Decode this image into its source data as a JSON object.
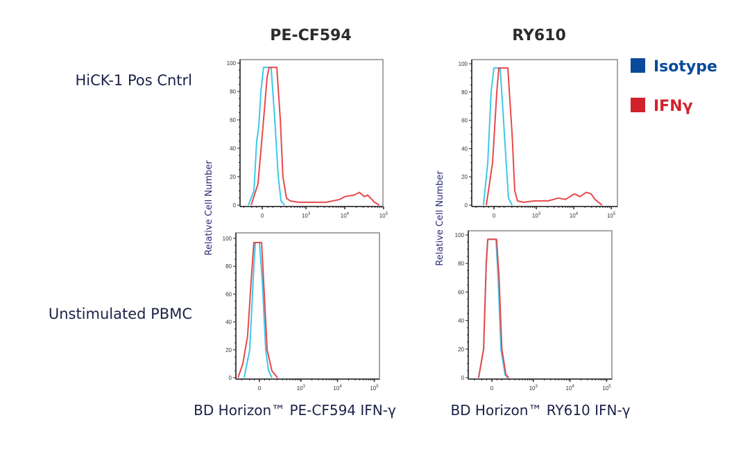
{
  "column_titles": [
    "PE-CF594",
    "RY610"
  ],
  "row_labels": [
    "HiCK-1 Pos Cntrl",
    "Unstimulated PBMC"
  ],
  "x_axis_labels": [
    "BD Horizon™ PE-CF594 IFN-γ",
    "BD Horizon™ RY610 IFN-γ"
  ],
  "y_axis_label": "Relative Cell Number",
  "legend": [
    {
      "label": "Isotype",
      "color": "#0b4a9b",
      "line_color": "#3cc8e8"
    },
    {
      "label": "IFNγ",
      "color": "#d1222b",
      "line_color": "#e8484a"
    }
  ],
  "chart_data": [
    {
      "type": "line",
      "panel": "HiCK-1 Pos Cntrl / PE-CF594",
      "x_scale": "biexponential",
      "xlim": [
        -260,
        200000
      ],
      "ylim": [
        0,
        100
      ],
      "grid": false,
      "y_ticks": [
        "0",
        "20",
        "40",
        "60",
        "80",
        "100"
      ],
      "x_ticks": [
        {
          "value": 0,
          "base": "0",
          "exp": ""
        },
        {
          "value": 1000,
          "base": "10",
          "exp": "3"
        },
        {
          "value": 10000,
          "base": "10",
          "exp": "4"
        },
        {
          "value": 100000,
          "base": "10",
          "exp": "5"
        }
      ],
      "series": [
        {
          "name": "Isotype",
          "x": [
            -138,
            -77,
            -50,
            -31,
            -12,
            12,
            83,
            122,
            165,
            204,
            261
          ],
          "y": [
            0,
            10,
            45,
            55,
            80,
            97,
            97,
            60,
            20,
            3,
            0
          ]
        },
        {
          "name": "IFNγ",
          "x": [
            -106,
            -38,
            12,
            44,
            63,
            146,
            194,
            234,
            298,
            376,
            632,
            1440,
            3300,
            7500,
            10000,
            17000,
            24000,
            32000,
            39000,
            59000,
            78000
          ],
          "y": [
            0,
            15,
            60,
            90,
            97,
            97,
            60,
            20,
            5,
            3,
            2,
            2,
            2,
            4,
            6,
            7,
            9,
            6,
            7,
            2,
            0
          ]
        }
      ]
    },
    {
      "type": "line",
      "panel": "HiCK-1 Pos Cntrl / RY610",
      "x_scale": "biexponential",
      "xlim": [
        -260,
        200000
      ],
      "ylim": [
        0,
        100
      ],
      "grid": false,
      "y_ticks": [
        "0",
        "20",
        "40",
        "60",
        "80",
        "100"
      ],
      "x_ticks": [
        {
          "value": 0,
          "base": "0",
          "exp": ""
        },
        {
          "value": 1000,
          "base": "10",
          "exp": "3"
        },
        {
          "value": 10000,
          "base": "10",
          "exp": "4"
        },
        {
          "value": 100000,
          "base": "10",
          "exp": "5"
        }
      ],
      "series": [
        {
          "name": "Isotype",
          "x": [
            -103,
            -58,
            -26,
            0,
            59,
            103,
            152,
            204
          ],
          "y": [
            0,
            30,
            80,
            97,
            97,
            50,
            5,
            0
          ]
        },
        {
          "name": "IFNγ",
          "x": [
            -73,
            -13,
            26,
            46,
            144,
            204,
            248,
            301,
            450,
            885,
            2070,
            3900,
            6000,
            10500,
            14700,
            21500,
            29000,
            37000,
            57000
          ],
          "y": [
            0,
            30,
            80,
            97,
            97,
            50,
            10,
            3,
            2,
            3,
            3,
            5,
            4,
            8,
            6,
            9,
            8,
            4,
            0
          ]
        }
      ]
    },
    {
      "type": "line",
      "panel": "Unstimulated PBMC / PE-CF594",
      "x_scale": "biexponential",
      "xlim": [
        -300,
        200000
      ],
      "ylim": [
        0,
        100
      ],
      "grid": false,
      "y_ticks": [
        "0",
        "20",
        "40",
        "60",
        "80",
        "100"
      ],
      "x_ticks": [
        {
          "value": 0,
          "base": "0",
          "exp": ""
        },
        {
          "value": 1000,
          "base": "10",
          "exp": "3"
        },
        {
          "value": 10000,
          "base": "10",
          "exp": "4"
        },
        {
          "value": 100000,
          "base": "10",
          "exp": "5"
        }
      ],
      "series": [
        {
          "name": "Isotype",
          "x": [
            -167,
            -97,
            -54,
            -39,
            0,
            26,
            60,
            90,
            129
          ],
          "y": [
            0,
            20,
            80,
            97,
            97,
            70,
            20,
            5,
            0
          ]
        },
        {
          "name": "IFNγ",
          "x": [
            -268,
            -186,
            -122,
            -81,
            -54,
            20,
            39,
            75,
            129,
            208
          ],
          "y": [
            0,
            10,
            30,
            70,
            97,
            97,
            70,
            20,
            5,
            0
          ]
        }
      ]
    },
    {
      "type": "line",
      "panel": "Unstimulated PBMC / RY610",
      "x_scale": "biexponential",
      "xlim": [
        -300,
        200000
      ],
      "ylim": [
        0,
        100
      ],
      "grid": false,
      "y_ticks": [
        "0",
        "20",
        "40",
        "60",
        "80",
        "100"
      ],
      "x_ticks": [
        {
          "value": 0,
          "base": "0",
          "exp": ""
        },
        {
          "value": 1000,
          "base": "10",
          "exp": "3"
        },
        {
          "value": 10000,
          "base": "10",
          "exp": "4"
        },
        {
          "value": 100000,
          "base": "10",
          "exp": "5"
        }
      ],
      "series": [
        {
          "name": "Isotype",
          "x": [
            -139,
            -81,
            -54,
            -39,
            39,
            60,
            90,
            139,
            176
          ],
          "y": [
            0,
            20,
            80,
            97,
            97,
            70,
            20,
            2,
            0
          ]
        },
        {
          "name": "IFNγ",
          "x": [
            -139,
            -81,
            -54,
            -39,
            45,
            70,
            100,
            150,
            190
          ],
          "y": [
            0,
            20,
            80,
            97,
            97,
            70,
            20,
            2,
            0
          ]
        }
      ]
    }
  ]
}
